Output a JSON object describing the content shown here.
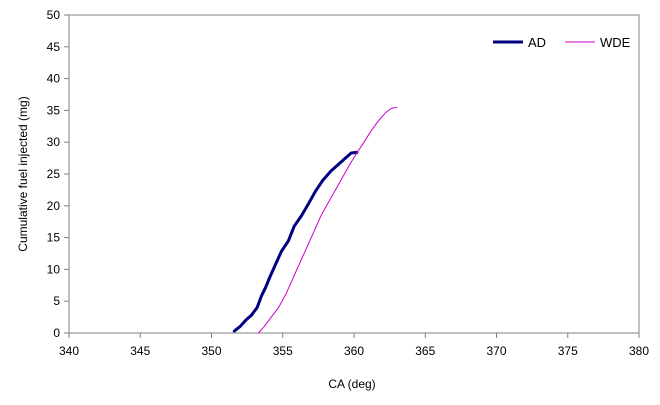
{
  "chart_data": {
    "type": "line",
    "title": "",
    "xlabel": "CA  (deg)",
    "ylabel": "Cumulative fuel injected (mg)",
    "xlim": [
      340,
      380
    ],
    "ylim": [
      0,
      50
    ],
    "xticks": [
      340,
      345,
      350,
      355,
      360,
      365,
      370,
      375,
      380
    ],
    "yticks": [
      0,
      5,
      10,
      15,
      20,
      25,
      30,
      35,
      40,
      45,
      50
    ],
    "grid": false,
    "legend_position": "top-right",
    "series": [
      {
        "name": "AD",
        "color": "#000080",
        "line_style": "thick",
        "x": [
          351.6,
          352.0,
          352.4,
          352.8,
          353.2,
          353.5,
          353.8,
          354.1,
          354.5,
          354.9,
          355.4,
          355.8,
          356.3,
          356.8,
          357.3,
          357.8,
          358.4,
          358.9,
          359.4,
          359.8,
          360.2
        ],
        "y": [
          0.3,
          1.0,
          2.0,
          2.8,
          4.0,
          5.8,
          7.2,
          8.8,
          10.8,
          12.8,
          14.5,
          16.8,
          18.4,
          20.3,
          22.3,
          24.0,
          25.5,
          26.5,
          27.5,
          28.3,
          28.4
        ]
      },
      {
        "name": "WDE",
        "color": "#cc00cc",
        "line_style": "thin",
        "x": [
          353.3,
          353.7,
          354.2,
          354.7,
          355.2,
          355.7,
          356.2,
          356.7,
          357.2,
          357.7,
          358.2,
          358.7,
          359.2,
          359.7,
          360.2,
          360.7,
          361.2,
          361.7,
          362.2,
          362.6,
          363.0
        ],
        "y": [
          0.0,
          1.0,
          2.5,
          4.0,
          6.0,
          8.5,
          11.0,
          13.5,
          16.0,
          18.5,
          20.5,
          22.5,
          24.5,
          26.5,
          28.3,
          30.0,
          31.8,
          33.3,
          34.6,
          35.3,
          35.5
        ]
      }
    ]
  }
}
